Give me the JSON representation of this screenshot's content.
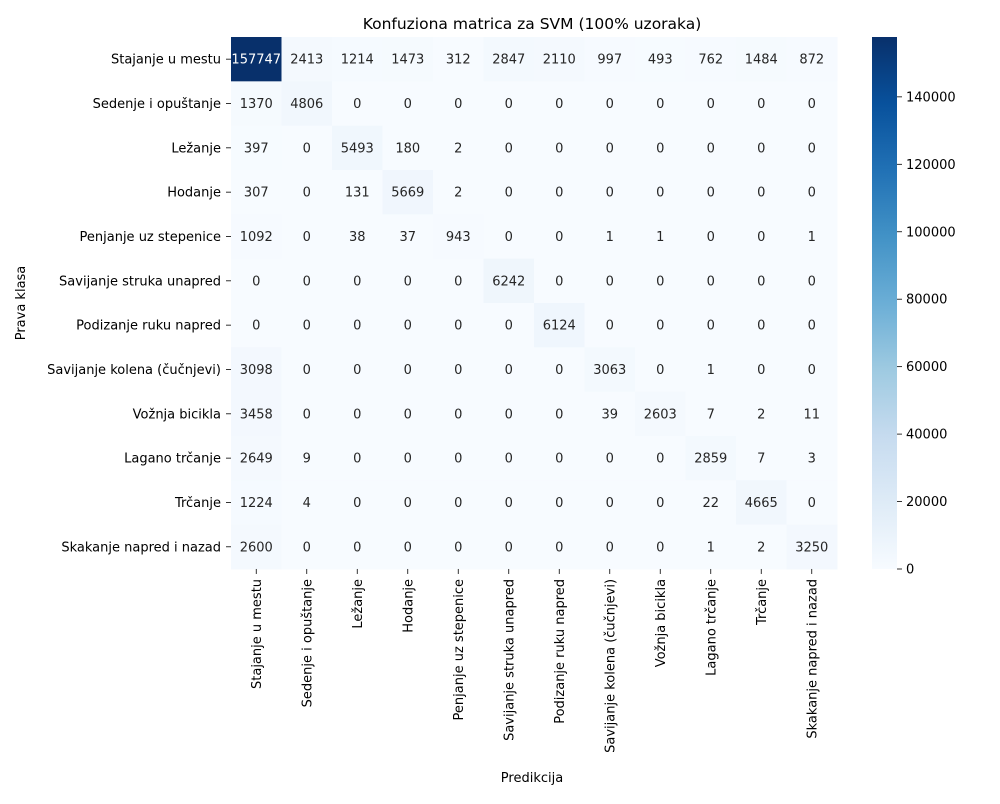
{
  "chart_data": {
    "type": "heatmap",
    "title": "Konfuziona matrica za SVM (100% uzoraka)",
    "xlabel": "Predikcija",
    "ylabel": "Prava klasa",
    "row_labels": [
      "Stajanje u mestu",
      "Sedenje i opuštanje",
      "Ležanje",
      "Hodanje",
      "Penjanje uz stepenice",
      "Savijanje struka unapred",
      "Podizanje ruku napred",
      "Savijanje kolena (čučnjevi)",
      "Vožnja bicikla",
      "Lagano trčanje",
      "Trčanje",
      "Skakanje napred i nazad"
    ],
    "col_labels": [
      "Stajanje u mestu",
      "Sedenje i opuštanje",
      "Ležanje",
      "Hodanje",
      "Penjanje uz stepenice",
      "Savijanje struka unapred",
      "Podizanje ruku napred",
      "Savijanje kolena (čučnjevi)",
      "Vožnja bicikla",
      "Lagano trčanje",
      "Trčanje",
      "Skakanje napred i nazad"
    ],
    "values": [
      [
        157747,
        2413,
        1214,
        1473,
        312,
        2847,
        2110,
        997,
        493,
        762,
        1484,
        872
      ],
      [
        1370,
        4806,
        0,
        0,
        0,
        0,
        0,
        0,
        0,
        0,
        0,
        0
      ],
      [
        397,
        0,
        5493,
        180,
        2,
        0,
        0,
        0,
        0,
        0,
        0,
        0
      ],
      [
        307,
        0,
        131,
        5669,
        2,
        0,
        0,
        0,
        0,
        0,
        0,
        0
      ],
      [
        1092,
        0,
        38,
        37,
        943,
        0,
        0,
        1,
        1,
        0,
        0,
        1
      ],
      [
        0,
        0,
        0,
        0,
        0,
        6242,
        0,
        0,
        0,
        0,
        0,
        0
      ],
      [
        0,
        0,
        0,
        0,
        0,
        0,
        6124,
        0,
        0,
        0,
        0,
        0
      ],
      [
        3098,
        0,
        0,
        0,
        0,
        0,
        0,
        3063,
        0,
        1,
        0,
        0
      ],
      [
        3458,
        0,
        0,
        0,
        0,
        0,
        0,
        39,
        2603,
        7,
        2,
        11
      ],
      [
        2649,
        9,
        0,
        0,
        0,
        0,
        0,
        0,
        0,
        2859,
        7,
        3
      ],
      [
        1224,
        4,
        0,
        0,
        0,
        0,
        0,
        0,
        0,
        22,
        4665,
        0
      ],
      [
        2600,
        0,
        0,
        0,
        0,
        0,
        0,
        0,
        0,
        1,
        2,
        3250
      ]
    ],
    "colorbar": {
      "colormap": "Blues",
      "range": [
        0,
        157747
      ],
      "ticks": [
        0,
        20000,
        40000,
        60000,
        80000,
        100000,
        120000,
        140000
      ],
      "tick_labels": [
        "0",
        "20000",
        "40000",
        "60000",
        "80000",
        "100000",
        "120000",
        "140000"
      ]
    },
    "grid": false
  }
}
